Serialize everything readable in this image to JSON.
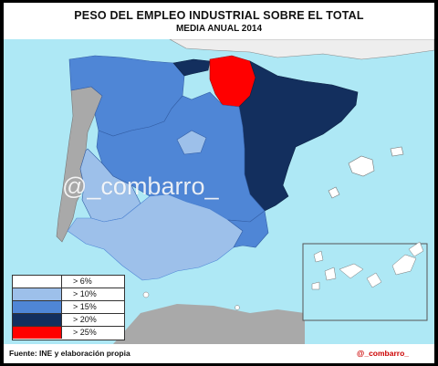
{
  "title": "PESO DEL EMPLEO INDUSTRIAL SOBRE EL TOTAL",
  "subtitle": "MEDIA ANUAL 2014",
  "watermark": "@_combarro_",
  "legend": [
    {
      "label": "> 6%",
      "color": "#ffffff"
    },
    {
      "label": "> 10%",
      "color": "#9dc0ea"
    },
    {
      "label": "> 15%",
      "color": "#4f86d6"
    },
    {
      "label": "> 20%",
      "color": "#132f5e"
    },
    {
      "label": "> 25%",
      "color": "#ff0000"
    }
  ],
  "source": "Fuente: INE y elaboración  propia",
  "handle": "@_combarro_",
  "colors": {
    "sea": "#aee8f5",
    "portugal": "#a9a9a9",
    "france": "#eeeeee",
    "north_africa": "#a9a9a9",
    "islands": "#ffffff"
  }
}
